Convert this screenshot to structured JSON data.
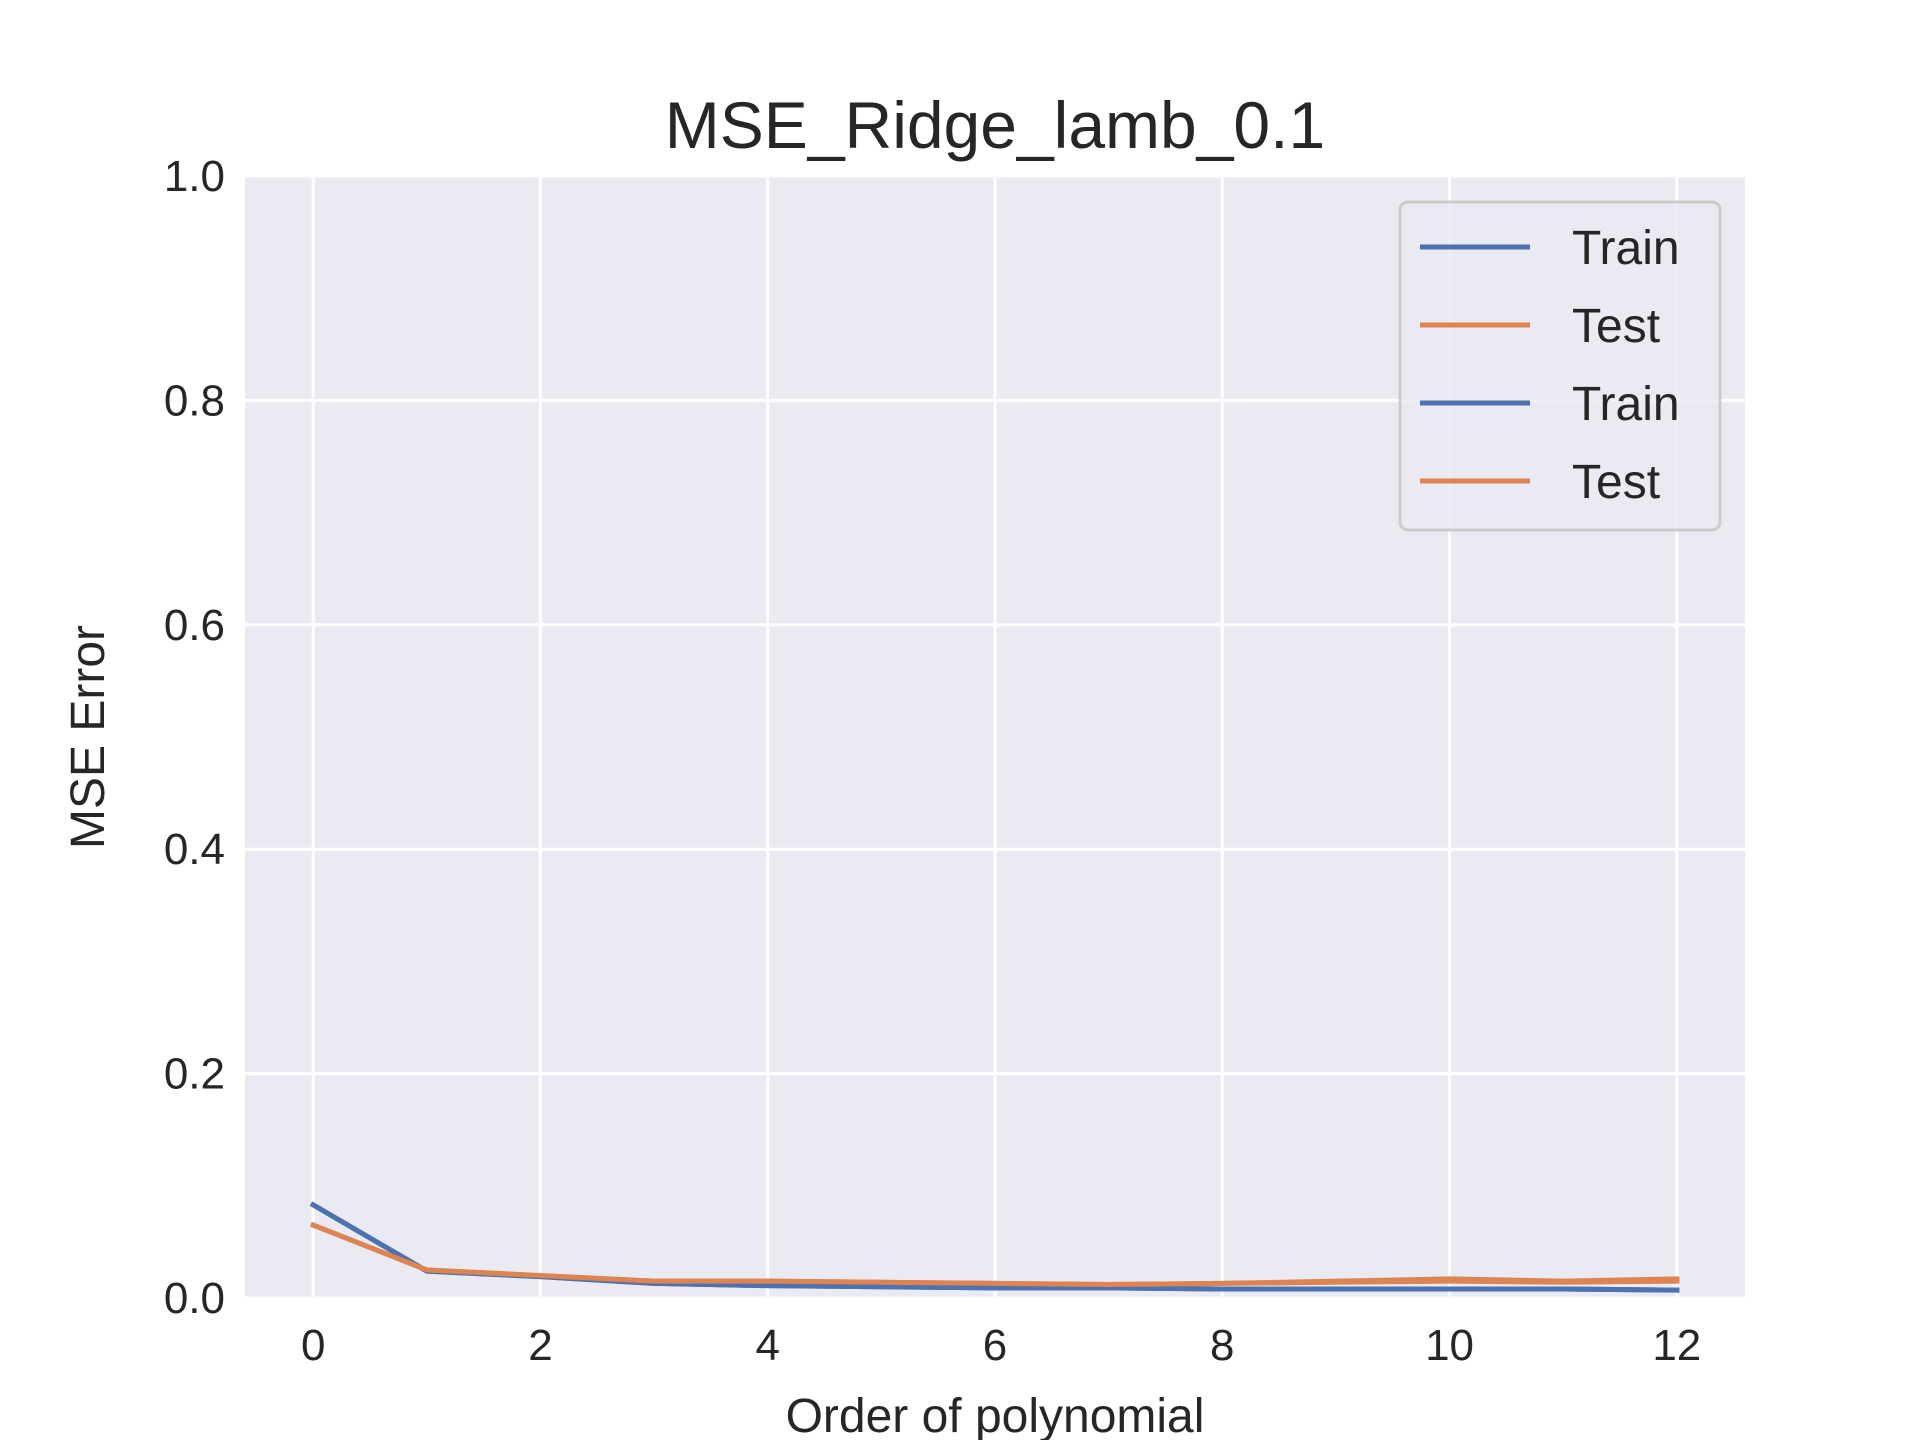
{
  "chart_data": {
    "type": "line",
    "title": "MSE_Ridge_lamb_0.1",
    "xlabel": "Order of polynomial",
    "ylabel": "MSE Error",
    "xlim": [
      -0.6,
      12.6
    ],
    "ylim": [
      0,
      1.0
    ],
    "xticks": [
      "0",
      "2",
      "4",
      "6",
      "8",
      "10",
      "12"
    ],
    "yticks": [
      "0.0",
      "0.2",
      "0.4",
      "0.6",
      "0.8",
      "1.0"
    ],
    "grid": true,
    "legend_position": "top-right",
    "x": [
      0,
      1,
      2,
      3,
      4,
      5,
      6,
      7,
      8,
      9,
      10,
      11,
      12
    ],
    "series": [
      {
        "name": "Train",
        "color": "#4c72b0",
        "values": [
          0.083,
          0.024,
          0.019,
          0.013,
          0.011,
          0.01,
          0.009,
          0.009,
          0.008,
          0.008,
          0.008,
          0.008,
          0.007
        ]
      },
      {
        "name": "Test",
        "color": "#dd8452",
        "values": [
          0.065,
          0.025,
          0.02,
          0.015,
          0.015,
          0.014,
          0.013,
          0.012,
          0.013,
          0.014,
          0.015,
          0.014,
          0.015
        ]
      },
      {
        "name": "Train",
        "color": "#4c72b0",
        "values": [
          0.083,
          0.024,
          0.019,
          0.013,
          0.011,
          0.01,
          0.009,
          0.009,
          0.008,
          0.008,
          0.008,
          0.008,
          0.007
        ]
      },
      {
        "name": "Test",
        "color": "#dd8452",
        "values": [
          0.065,
          0.025,
          0.02,
          0.015,
          0.015,
          0.014,
          0.013,
          0.012,
          0.013,
          0.015,
          0.017,
          0.015,
          0.017
        ]
      }
    ]
  },
  "colors": {
    "background": "#ffffff",
    "plot_area": "#eaeaf2",
    "grid": "#ffffff",
    "text": "#262626"
  }
}
